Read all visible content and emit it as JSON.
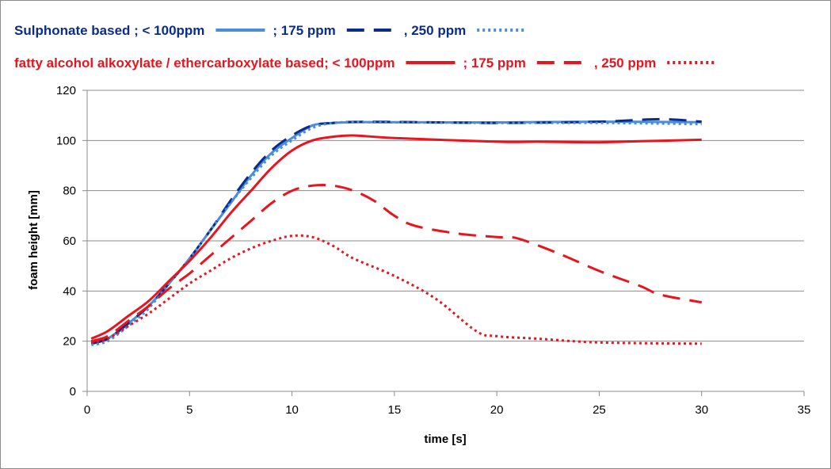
{
  "chart_data": {
    "type": "line",
    "xlabel": "time [s]",
    "ylabel": "foam height [mm]",
    "xlim": [
      0,
      35
    ],
    "ylim": [
      0,
      120
    ],
    "x_ticks": [
      0,
      5,
      10,
      15,
      20,
      25,
      30,
      35
    ],
    "y_ticks": [
      0,
      20,
      40,
      60,
      80,
      100,
      120
    ],
    "grid": "horizontal",
    "legend_placement": "top",
    "legend": [
      {
        "color": "#0a2d8c",
        "segments": [
          {
            "text": "Sulphonate based ; < 100ppm",
            "series": "s100"
          },
          {
            "text": "; 175 ppm",
            "series": "s175"
          },
          {
            "text": ",    250 ppm",
            "series": "s250"
          }
        ]
      },
      {
        "color": "#e8141e",
        "segments": [
          {
            "text": "fatty alcohol alkoxylate / ethercarboxylate based; < 100ppm",
            "series": "f100"
          },
          {
            "text": "; 175 ppm",
            "series": "f175"
          },
          {
            "text": ", 250 ppm",
            "series": "f250"
          }
        ]
      }
    ],
    "series": [
      {
        "id": "s100",
        "color": "#4a8ddc",
        "dash": "solid",
        "width": 3,
        "x": [
          0.2,
          1,
          2,
          3,
          4,
          5,
          6,
          7,
          8,
          9,
          10,
          11,
          12,
          13,
          15,
          20,
          25,
          30
        ],
        "y": [
          19,
          21,
          27,
          34,
          43,
          53,
          64,
          75,
          86,
          95,
          101,
          106,
          107,
          107.3,
          107.3,
          107.2,
          107.5,
          107.3
        ]
      },
      {
        "id": "s175",
        "color": "#0a2d8c",
        "dash": "dash",
        "width": 3,
        "x": [
          0.2,
          1,
          2,
          3,
          4,
          5,
          6,
          7,
          8,
          9,
          10,
          11,
          12,
          13,
          15,
          20,
          25,
          28,
          30
        ],
        "y": [
          19,
          21,
          27,
          34,
          43,
          53,
          64,
          76,
          87,
          96,
          102,
          106,
          107,
          107.4,
          107.4,
          107,
          107.5,
          108.5,
          107.5
        ]
      },
      {
        "id": "s250",
        "color": "#4a8ddc",
        "dash": "dot",
        "width": 3,
        "x": [
          0.2,
          1,
          2,
          3,
          4,
          5,
          6,
          7,
          8,
          9,
          10,
          11,
          12,
          13,
          15,
          20,
          25,
          30
        ],
        "y": [
          18.5,
          20,
          26,
          33,
          43,
          53,
          64,
          75,
          85,
          94,
          100,
          105,
          107,
          107.3,
          107.2,
          107,
          107,
          106.5
        ]
      },
      {
        "id": "f100",
        "color": "#e8141e",
        "dash": "solid",
        "width": 3,
        "x": [
          0.2,
          1,
          2,
          3,
          4,
          5,
          6,
          7,
          8,
          9,
          10,
          11,
          12,
          13,
          15,
          20,
          22,
          25,
          27,
          30
        ],
        "y": [
          21,
          24,
          30,
          36,
          44,
          52,
          61,
          71,
          80,
          89,
          96,
          100,
          101.5,
          102,
          101,
          99.5,
          99.5,
          99.3,
          99.7,
          100.3
        ]
      },
      {
        "id": "f175",
        "color": "#e8141e",
        "dash": "dash",
        "width": 3,
        "x": [
          0.2,
          1,
          2,
          3,
          4,
          5,
          6,
          7,
          8,
          9,
          10,
          11,
          12,
          13,
          14,
          15,
          16,
          18,
          20,
          21,
          23,
          25,
          27,
          28,
          30
        ],
        "y": [
          20,
          22,
          28,
          34,
          41,
          47,
          54,
          61,
          68,
          75,
          80,
          82,
          82,
          80,
          76,
          70,
          66,
          63,
          61.5,
          61,
          55,
          48,
          42,
          38.5,
          35.5
        ]
      },
      {
        "id": "f250",
        "color": "#e8141e",
        "dash": "dot",
        "width": 3,
        "x": [
          0.2,
          1,
          2,
          3,
          4,
          5,
          6,
          7,
          8,
          9,
          10,
          11,
          12,
          13,
          15,
          17,
          19,
          20,
          22,
          25,
          30
        ],
        "y": [
          19.5,
          21,
          26,
          31,
          37,
          43,
          48,
          53,
          57,
          60,
          62,
          61.5,
          58,
          53,
          46,
          37,
          24,
          22,
          21,
          19.5,
          19
        ]
      }
    ]
  }
}
